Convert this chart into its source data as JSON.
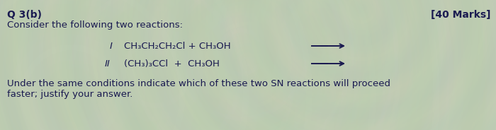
{
  "background_color": "#c8cdb8",
  "title_bold": "Q 3(b)",
  "title_sub": "Consider the following two reactions:",
  "marks": "[40 Marks]",
  "reaction_I_label": "I",
  "reaction_I_text": "CH₃CH₂CH₂Cl + CH₃OH",
  "reaction_II_label": "II",
  "reaction_II_text": "(CH₃)₃CCl  +  CH₃OH",
  "footer_line1": "Under the same conditions indicate which of these two SN reactions will proceed",
  "footer_line2": "faster; justify your answer.",
  "text_color": "#1a1a50",
  "arrow_color": "#1a1a50",
  "font_size_title": 10,
  "font_size_body": 9.5,
  "font_size_marks": 10,
  "wave_colors": [
    "#b8c4a8",
    "#c8d4b8",
    "#d8e4c8",
    "#b0c4a0",
    "#a8bcb0",
    "#c0d0c0",
    "#d0dcc8",
    "#b8ccc0"
  ],
  "wave_alpha": 0.6
}
